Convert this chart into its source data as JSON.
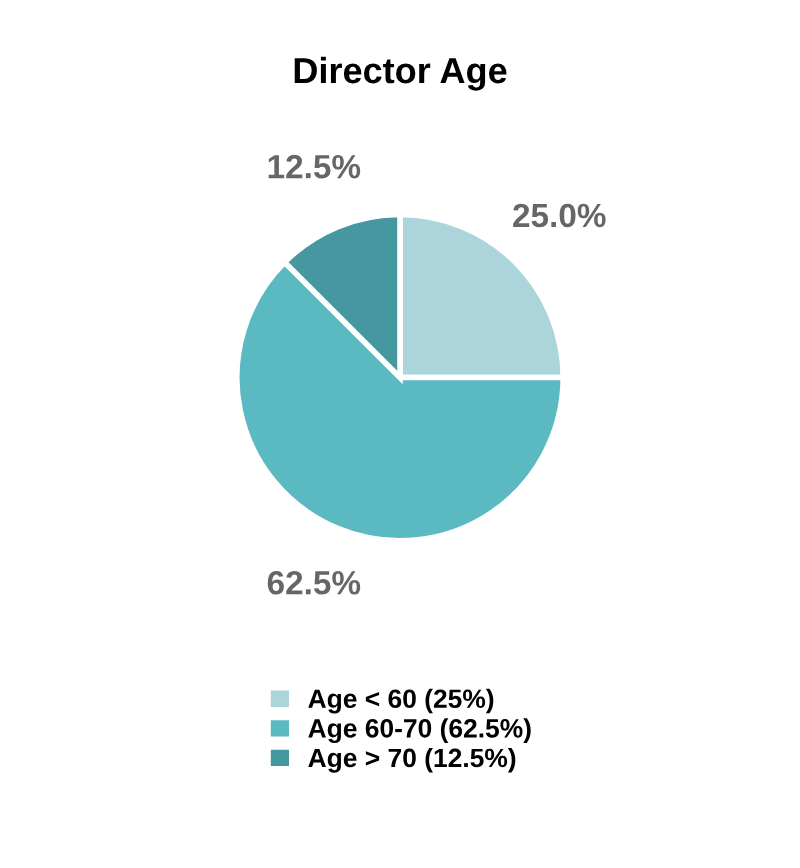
{
  "chart_data": {
    "type": "pie",
    "title": "Director Age",
    "categories": [
      "Age < 60 (25%)",
      "Age 60-70 (62.5%)",
      "Age > 70 (12.5%)"
    ],
    "values": [
      25,
      62.5,
      12.5
    ],
    "colors": [
      "#acd5db",
      "#5bb9c2",
      "#4598a0"
    ],
    "value_labels": [
      "25.0%",
      "62.5%",
      "12.5%"
    ],
    "legend": "bottom"
  }
}
